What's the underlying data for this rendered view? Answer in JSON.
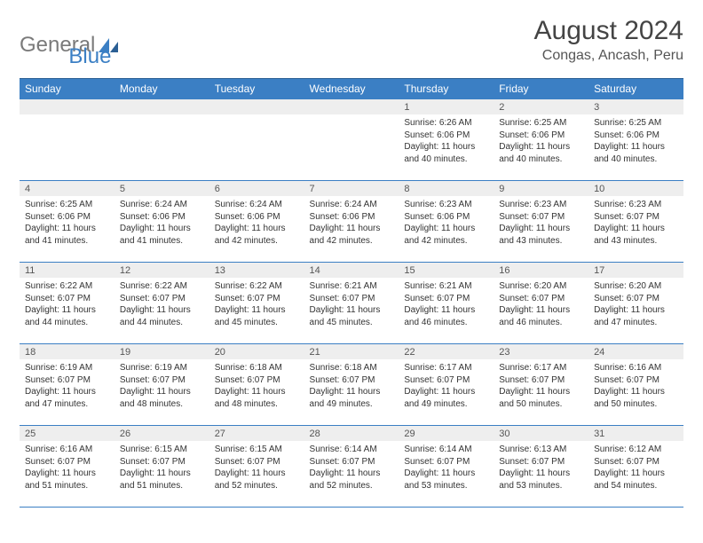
{
  "logo": {
    "word1": "General",
    "word2": "Blue"
  },
  "title": "August 2024",
  "location": "Congas, Ancash, Peru",
  "colors": {
    "header_bg": "#3b7fc4",
    "header_text": "#ffffff",
    "daynum_bg": "#eeeeee",
    "cell_border": "#3b7fc4",
    "body_text": "#333333",
    "logo_gray": "#7a7a7a",
    "logo_blue": "#3b7fc4"
  },
  "weekdays": [
    "Sunday",
    "Monday",
    "Tuesday",
    "Wednesday",
    "Thursday",
    "Friday",
    "Saturday"
  ],
  "first_weekday_index": 4,
  "days": [
    {
      "n": 1,
      "sunrise": "6:26 AM",
      "sunset": "6:06 PM",
      "dlh": 11,
      "dlm": 40
    },
    {
      "n": 2,
      "sunrise": "6:25 AM",
      "sunset": "6:06 PM",
      "dlh": 11,
      "dlm": 40
    },
    {
      "n": 3,
      "sunrise": "6:25 AM",
      "sunset": "6:06 PM",
      "dlh": 11,
      "dlm": 40
    },
    {
      "n": 4,
      "sunrise": "6:25 AM",
      "sunset": "6:06 PM",
      "dlh": 11,
      "dlm": 41
    },
    {
      "n": 5,
      "sunrise": "6:24 AM",
      "sunset": "6:06 PM",
      "dlh": 11,
      "dlm": 41
    },
    {
      "n": 6,
      "sunrise": "6:24 AM",
      "sunset": "6:06 PM",
      "dlh": 11,
      "dlm": 42
    },
    {
      "n": 7,
      "sunrise": "6:24 AM",
      "sunset": "6:06 PM",
      "dlh": 11,
      "dlm": 42
    },
    {
      "n": 8,
      "sunrise": "6:23 AM",
      "sunset": "6:06 PM",
      "dlh": 11,
      "dlm": 42
    },
    {
      "n": 9,
      "sunrise": "6:23 AM",
      "sunset": "6:07 PM",
      "dlh": 11,
      "dlm": 43
    },
    {
      "n": 10,
      "sunrise": "6:23 AM",
      "sunset": "6:07 PM",
      "dlh": 11,
      "dlm": 43
    },
    {
      "n": 11,
      "sunrise": "6:22 AM",
      "sunset": "6:07 PM",
      "dlh": 11,
      "dlm": 44
    },
    {
      "n": 12,
      "sunrise": "6:22 AM",
      "sunset": "6:07 PM",
      "dlh": 11,
      "dlm": 44
    },
    {
      "n": 13,
      "sunrise": "6:22 AM",
      "sunset": "6:07 PM",
      "dlh": 11,
      "dlm": 45
    },
    {
      "n": 14,
      "sunrise": "6:21 AM",
      "sunset": "6:07 PM",
      "dlh": 11,
      "dlm": 45
    },
    {
      "n": 15,
      "sunrise": "6:21 AM",
      "sunset": "6:07 PM",
      "dlh": 11,
      "dlm": 46
    },
    {
      "n": 16,
      "sunrise": "6:20 AM",
      "sunset": "6:07 PM",
      "dlh": 11,
      "dlm": 46
    },
    {
      "n": 17,
      "sunrise": "6:20 AM",
      "sunset": "6:07 PM",
      "dlh": 11,
      "dlm": 47
    },
    {
      "n": 18,
      "sunrise": "6:19 AM",
      "sunset": "6:07 PM",
      "dlh": 11,
      "dlm": 47
    },
    {
      "n": 19,
      "sunrise": "6:19 AM",
      "sunset": "6:07 PM",
      "dlh": 11,
      "dlm": 48
    },
    {
      "n": 20,
      "sunrise": "6:18 AM",
      "sunset": "6:07 PM",
      "dlh": 11,
      "dlm": 48
    },
    {
      "n": 21,
      "sunrise": "6:18 AM",
      "sunset": "6:07 PM",
      "dlh": 11,
      "dlm": 49
    },
    {
      "n": 22,
      "sunrise": "6:17 AM",
      "sunset": "6:07 PM",
      "dlh": 11,
      "dlm": 49
    },
    {
      "n": 23,
      "sunrise": "6:17 AM",
      "sunset": "6:07 PM",
      "dlh": 11,
      "dlm": 50
    },
    {
      "n": 24,
      "sunrise": "6:16 AM",
      "sunset": "6:07 PM",
      "dlh": 11,
      "dlm": 50
    },
    {
      "n": 25,
      "sunrise": "6:16 AM",
      "sunset": "6:07 PM",
      "dlh": 11,
      "dlm": 51
    },
    {
      "n": 26,
      "sunrise": "6:15 AM",
      "sunset": "6:07 PM",
      "dlh": 11,
      "dlm": 51
    },
    {
      "n": 27,
      "sunrise": "6:15 AM",
      "sunset": "6:07 PM",
      "dlh": 11,
      "dlm": 52
    },
    {
      "n": 28,
      "sunrise": "6:14 AM",
      "sunset": "6:07 PM",
      "dlh": 11,
      "dlm": 52
    },
    {
      "n": 29,
      "sunrise": "6:14 AM",
      "sunset": "6:07 PM",
      "dlh": 11,
      "dlm": 53
    },
    {
      "n": 30,
      "sunrise": "6:13 AM",
      "sunset": "6:07 PM",
      "dlh": 11,
      "dlm": 53
    },
    {
      "n": 31,
      "sunrise": "6:12 AM",
      "sunset": "6:07 PM",
      "dlh": 11,
      "dlm": 54
    }
  ],
  "labels": {
    "sunrise_prefix": "Sunrise: ",
    "sunset_prefix": "Sunset: ",
    "daylight_prefix": "Daylight: ",
    "hours_word": " hours and ",
    "minutes_word": " minutes."
  }
}
